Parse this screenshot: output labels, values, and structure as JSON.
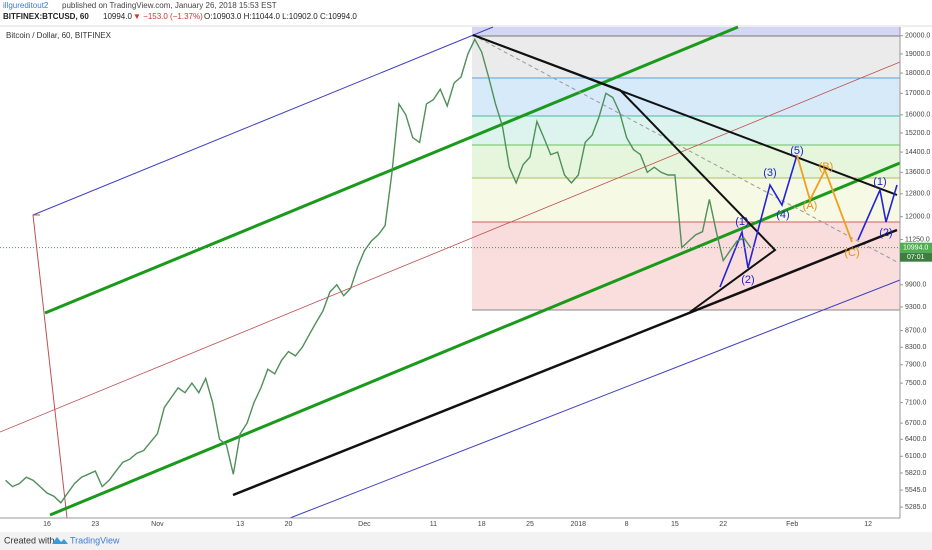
{
  "header": {
    "author": "illgureditout2",
    "published": "published on TradingView.com, January 26, 2018 15:53 EST",
    "symbol": "BITFINEX:BTCUSD, 60",
    "last": "10994.0",
    "change": "▼ −153.0 (−1.37%)",
    "ohlc": "O:10903.0 H:11044.0 L:10902.0 C:10994.0"
  },
  "chart_data": {
    "type": "line",
    "title": "Bitcoin / Dollar, 60, BITFINEX",
    "log": true,
    "grid": false,
    "color": "#4f8f5a",
    "categories": [
      null,
      null,
      null,
      null,
      null,
      null,
      "16",
      null,
      null,
      null,
      null,
      null,
      null,
      "23",
      null,
      null,
      null,
      null,
      null,
      null,
      null,
      null,
      "Nov",
      null,
      null,
      null,
      null,
      null,
      null,
      null,
      null,
      null,
      null,
      null,
      "13",
      null,
      null,
      null,
      null,
      null,
      null,
      "20",
      null,
      null,
      null,
      null,
      null,
      null,
      null,
      null,
      null,
      null,
      "Dec",
      null,
      null,
      null,
      null,
      null,
      null,
      null,
      null,
      null,
      "11",
      null,
      null,
      null,
      null,
      null,
      null,
      "18",
      null,
      null,
      null,
      null,
      null,
      null,
      "25",
      null,
      null,
      null,
      null,
      null,
      null,
      "2018",
      null,
      null,
      null,
      null,
      null,
      null,
      "8",
      null,
      null,
      null,
      null,
      null,
      null,
      "15",
      null,
      null,
      null,
      null,
      null,
      null,
      "22",
      null,
      null,
      null,
      null,
      null,
      null,
      null,
      null,
      null,
      "Feb",
      null,
      null,
      null,
      null,
      null,
      null,
      null,
      null,
      null,
      null,
      "12",
      null,
      null,
      null,
      null
    ],
    "values": [
      5700,
      5600,
      5650,
      5750,
      5700,
      5600,
      5500,
      5450,
      5350,
      5500,
      5650,
      5750,
      5800,
      5850,
      5600,
      5700,
      5850,
      6000,
      6050,
      6150,
      6200,
      6350,
      6500,
      7000,
      7200,
      7400,
      7300,
      7500,
      7300,
      7600,
      7100,
      6400,
      6300,
      5800,
      6500,
      6700,
      7100,
      7400,
      7800,
      7700,
      8000,
      8200,
      8100,
      8300,
      8600,
      8900,
      9200,
      9700,
      9900,
      9600,
      9800,
      10400,
      10900,
      11200,
      11400,
      11700,
      13600,
      16500,
      16000,
      15000,
      14800,
      16500,
      16700,
      17200,
      16400,
      17500,
      17800,
      19000,
      19800,
      19100,
      17800,
      16500,
      15500,
      13800,
      13200,
      13900,
      14200,
      15700,
      15000,
      14300,
      14400,
      13500,
      13200,
      13500,
      14800,
      15100,
      15900,
      17000,
      16800,
      16100,
      15000,
      14500,
      14300,
      13600,
      13800,
      13600,
      13500,
      13500,
      11000,
      11200,
      11400,
      11500,
      12600,
      11500,
      10600,
      10900,
      11200,
      11300,
      10994,
      null,
      null,
      null,
      null,
      null,
      null,
      null,
      null,
      null,
      null,
      null,
      null,
      null,
      null,
      null,
      null,
      null,
      null,
      null,
      null,
      null
    ],
    "ylim": [
      5125,
      20500
    ],
    "yticks": [
      {
        "value": 20000,
        "label": "20000.0"
      },
      {
        "value": 19000,
        "label": "19000.0"
      },
      {
        "value": 18000,
        "label": "18000.0"
      },
      {
        "value": 17000,
        "label": "17000.0"
      },
      {
        "value": 16000,
        "label": "16000.0"
      },
      {
        "value": 15200,
        "label": "15200.0"
      },
      {
        "value": 14400,
        "label": "14400.0"
      },
      {
        "value": 13600,
        "label": "13600.0"
      },
      {
        "value": 12800,
        "label": "12800.0"
      },
      {
        "value": 12000,
        "label": "12000.0"
      },
      {
        "value": 11250,
        "label": "11250.0"
      },
      {
        "value": 9900,
        "label": "9900.0"
      },
      {
        "value": 9300,
        "label": "9300.0"
      },
      {
        "value": 8700,
        "label": "8700.0"
      },
      {
        "value": 8300,
        "label": "8300.0"
      },
      {
        "value": 7900,
        "label": "7900.0"
      },
      {
        "value": 7500,
        "label": "7500.0"
      },
      {
        "value": 7100,
        "label": "7100.0"
      },
      {
        "value": 6700,
        "label": "6700.0"
      },
      {
        "value": 6400,
        "label": "6400.0"
      },
      {
        "value": 6100,
        "label": "6100.0"
      },
      {
        "value": 5820,
        "label": "5820.0"
      },
      {
        "value": 5545,
        "label": "5545.0"
      },
      {
        "value": 5285,
        "label": "5285.0"
      }
    ],
    "last_price": {
      "value": 10994,
      "label": "10994.0"
    },
    "countdown": "07:01",
    "annotations": [
      "(1)",
      "(2)",
      "(3)",
      "(4)",
      "(5)",
      "(A)",
      "(B)",
      "(C)",
      "(1)",
      "(2)"
    ]
  },
  "footer": {
    "created": "Created with",
    "brand": "TradingView"
  }
}
